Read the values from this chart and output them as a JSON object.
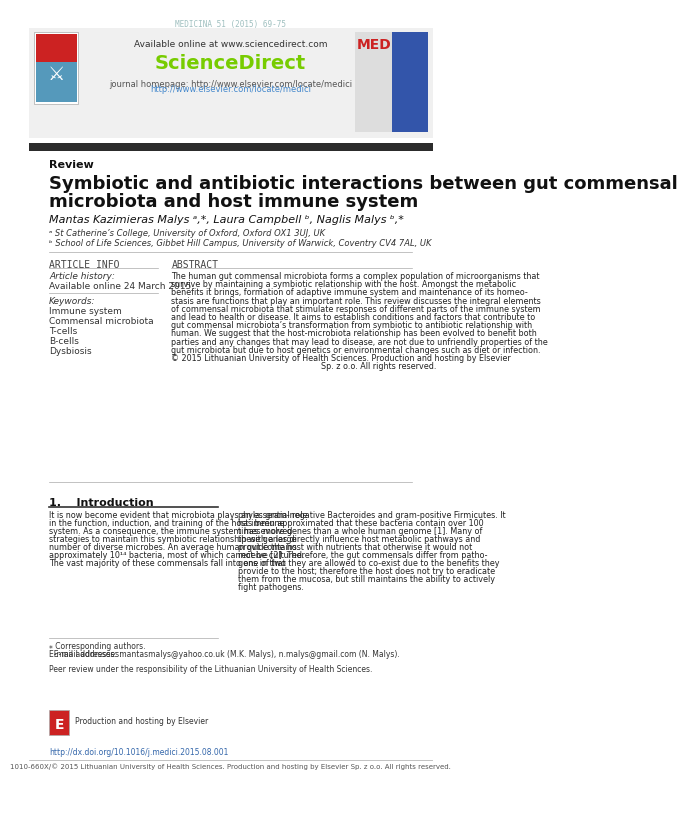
{
  "page_width": 5.95,
  "page_height": 7.94,
  "bg_color": "#ffffff",
  "top_journal_line": "MEDICINA 51 (2015) 69-75",
  "top_journal_color": "#a0c0c0",
  "header_bg": "#f0f0f0",
  "header_available_text": "Available online at www.sciencedirect.com",
  "header_sciencedirect": "ScienceDirect",
  "header_sciencedirect_color": "#77cc00",
  "header_journal_homepage": "journal homepage: http://www.elsevier.com/locate/medici",
  "header_homepage_color": "#4488cc",
  "section_label": "Review",
  "title_line1": "Symbiotic and antibiotic interactions between gut commensal",
  "title_line2": "microbiota and host immune system",
  "authors": "Mantas Kazimieras Malys ᵃ,*, Laura Campbell ᵇ, Naglis Malys ᵇ,*",
  "affil1": "ᵃ St Catherine’s College, University of Oxford, Oxford OX1 3UJ, UK",
  "affil2": "ᵇ School of Life Sciences, Gibbet Hill Campus, University of Warwick, Coventry CV4 7AL, UK",
  "article_info_header": "ARTICLE INFO",
  "article_history_label": "Article history:",
  "article_history_value": "Available online 24 March 2015",
  "keywords_label": "Keywords:",
  "keywords": [
    "Immune system",
    "Commensal microbiota",
    "T-cells",
    "B-cells",
    "Dysbiosis"
  ],
  "abstract_header": "ABSTRACT",
  "abstract_text": "The human gut commensal microbiota forms a complex population of microorganisms that survive by maintaining a symbiotic relationship with the host. Amongst the metabolic benefits it brings, formation of adaptive immune system and maintenance of its homeostasis are functions that play an important role. This review discusses the integral elements of commensal microbiota that stimulate responses of different parts of the immune system and lead to health or disease. It aims to establish conditions and factors that contribute to gut commensal microbiota’s transformation from symbiotic to antibiotic relationship with human. We suggest that the host-microbiota relationship has been evolved to benefit both parties and any changes that may lead to disease, are not due to unfriendly properties of the gut microbiota but due to host genetics or environmental changes such as diet or infection.\n© 2015 Lithuanian University of Health Sciences. Production and hosting by Elsevier Sp. z o.o. All rights reserved.",
  "intro_header": "1.    Introduction",
  "intro_text_left": "It is now become evident that microbiota plays an essential role in the function, induction, and training of the host immune system. As a consequence, the immune system has evolved strategies to maintain this symbiotic relationship with a large number of diverse microbes. An average human gut contains approximately 10¹⁴ bacteria, most of which cannot be cultured. The vast majority of these commensals fall into one of two",
  "intro_text_right": "phyla: gram-negative Bacteroides and gram-positive Firmicutes. It has been approximated that these bacteria contain over 100 times more genes than a whole human genome [1]. Many of these genes directly influence host metabolic pathways and provide the host with nutrients that otherwise it would not receive [2]. Therefore, the gut commensals differ from pathogens in that they are allowed to co-exist due to the benefits they provide to the host; therefore the host does not try to eradicate them from the mucosa, but still maintains the ability to actively fight pathogens.",
  "footnote_corresponding": "⁎ Corresponding authors.",
  "footnote_email": "E-mail addresses: mantasmalys@yahoo.co.uk (M.K. Malys), n.malys@gmail.com (N. Malys).",
  "footnote_peer": "Peer review under the responsibility of the Lithuanian University of Health Sciences.",
  "footer_doi": "http://dx.doi.org/10.1016/j.medici.2015.08.001",
  "footer_issn": "1010-660X/© 2015 Lithuanian University of Health Sciences. Production and hosting by Elsevier Sp. z o.o. All rights reserved.",
  "dark_bar_color": "#2c2c2c",
  "light_gray": "#cccccc",
  "text_color": "#1a1a1a",
  "blue_header": "#003399"
}
